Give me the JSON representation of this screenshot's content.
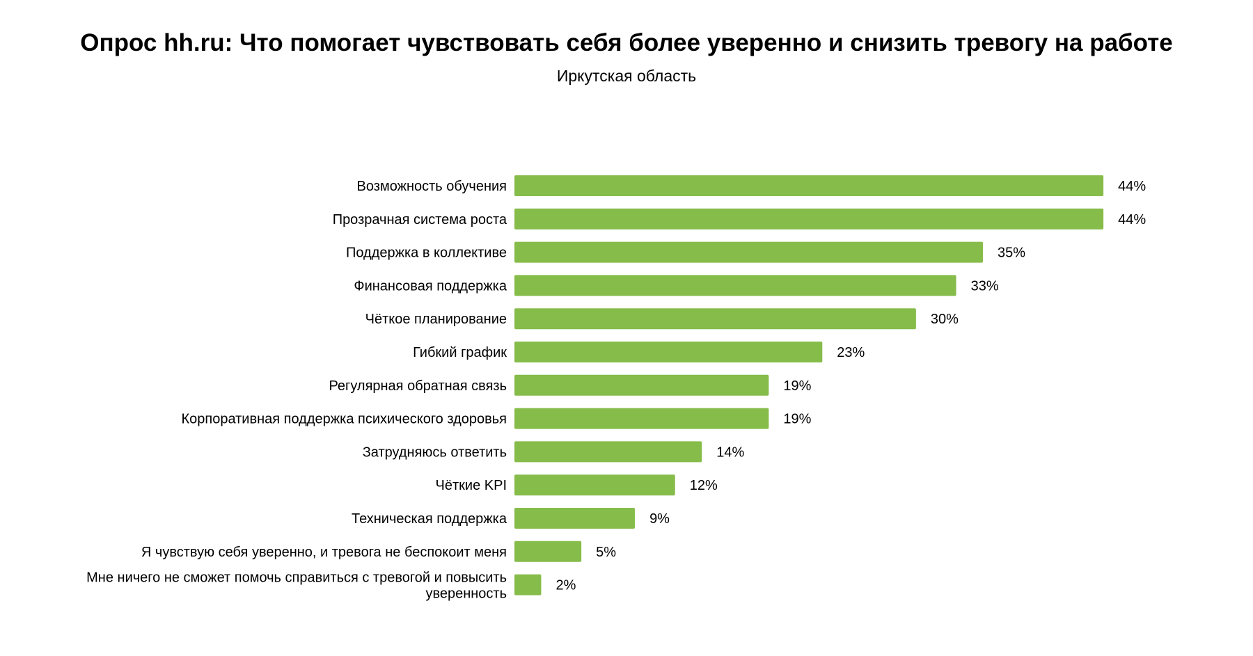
{
  "chart_data": {
    "type": "bar",
    "orientation": "horizontal",
    "title": "Опрос hh.ru: Что помогает чувствовать себя более уверенно и снизить тревогу на работе",
    "subtitle": "Иркутская область",
    "categories": [
      "Возможность обучения",
      "Прозрачная система роста",
      "Поддержка в коллективе",
      "Финансовая поддержка",
      "Чёткое планирование",
      "Гибкий график",
      "Регулярная обратная связь",
      "Корпоративная поддержка психического здоровья",
      "Затрудняюсь ответить",
      "Чёткие KPI",
      "Техническая поддержка",
      "Я чувствую себя уверенно, и тревога не беспокоит меня",
      "Мне ничего не сможет помочь справиться с тревогой и повысить уверенность"
    ],
    "values": [
      44,
      44,
      35,
      33,
      30,
      23,
      19,
      19,
      14,
      12,
      9,
      5,
      2
    ],
    "value_labels": [
      "44%",
      "44%",
      "35%",
      "33%",
      "30%",
      "23%",
      "19%",
      "19%",
      "14%",
      "12%",
      "9%",
      "5%",
      "2%"
    ],
    "unit": "%",
    "grid": false,
    "axes_visible": false,
    "bar_color": "#86BC4A"
  }
}
